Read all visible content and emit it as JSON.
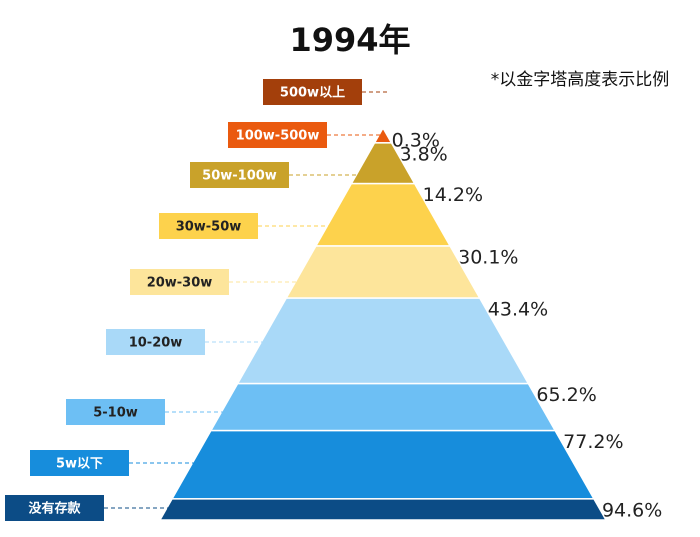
{
  "chart_data": {
    "type": "pyramid",
    "title": "1994年",
    "note": "*以金字塔高度表示比例",
    "categories": [
      "500w以上",
      "100w-500w",
      "50w-100w",
      "30w-50w",
      "20w-30w",
      "10-20w",
      "5-10w",
      "5w以下",
      "没有存款"
    ],
    "values": [
      0.3,
      3.8,
      14.2,
      30.1,
      43.4,
      65.2,
      77.2,
      94.6,
      null
    ],
    "value_labels": [
      "0.3%",
      "3.8%",
      "14.2%",
      "30.1%",
      "43.4%",
      "65.2%",
      "77.2%",
      "94.6%",
      null
    ],
    "colors": [
      "#a33f0b",
      "#ea5a0f",
      "#c9a22a",
      "#fdd24c",
      "#fde59b",
      "#a9d9f8",
      "#6dbff4",
      "#178ddc",
      "#0c4c86"
    ],
    "ylim": [
      0,
      100
    ]
  }
}
